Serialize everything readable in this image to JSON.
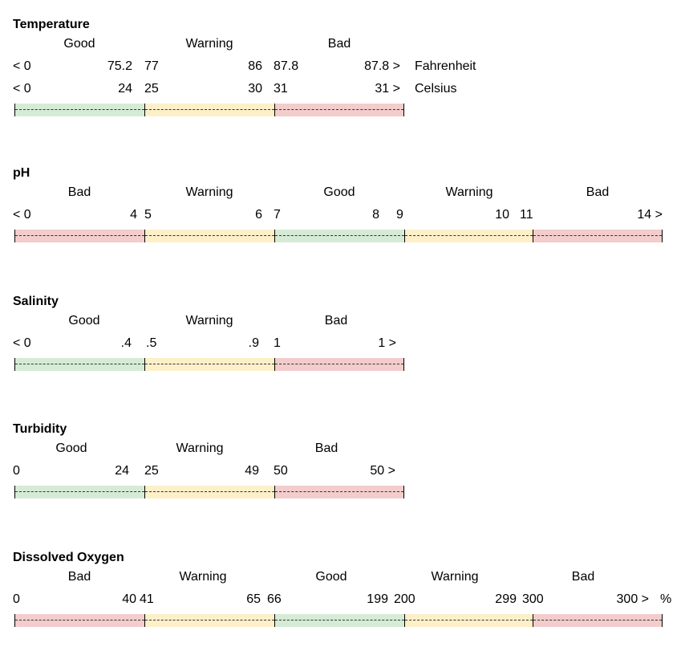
{
  "colors": {
    "good": "#d6ebd5",
    "warning": "#fdf0c8",
    "bad": "#f3cccc"
  },
  "sections": [
    {
      "title": "Temperature",
      "categories": [
        "Good",
        "Warning",
        "Bad"
      ],
      "value_rows": [
        {
          "ranges": [
            [
              "< 0",
              "75.2"
            ],
            [
              "77",
              "86"
            ],
            [
              "87.8",
              "87.8 >"
            ]
          ],
          "suffix": "Fahrenheit"
        },
        {
          "ranges": [
            [
              "< 0",
              "24"
            ],
            [
              "25",
              "30"
            ],
            [
              "31",
              "31 >"
            ]
          ],
          "suffix": "Celsius"
        }
      ]
    },
    {
      "title": "pH",
      "categories": [
        "Bad",
        "Warning",
        "Good",
        "Warning",
        "Bad"
      ],
      "value_rows": [
        {
          "ranges": [
            [
              "< 0",
              "4"
            ],
            [
              "5",
              "6"
            ],
            [
              "7",
              "8"
            ],
            [
              "9",
              "10"
            ],
            [
              "11",
              "14 >"
            ]
          ],
          "suffix": ""
        }
      ]
    },
    {
      "title": "Salinity",
      "categories": [
        "Good",
        "Warning",
        "Bad"
      ],
      "value_rows": [
        {
          "ranges": [
            [
              "< 0",
              ".4"
            ],
            [
              ".5",
              ".9"
            ],
            [
              "1",
              "1 >"
            ]
          ],
          "suffix": ""
        }
      ]
    },
    {
      "title": "Turbidity",
      "categories": [
        "Good",
        "Warning",
        "Bad"
      ],
      "value_rows": [
        {
          "ranges": [
            [
              "0",
              "24"
            ],
            [
              "25",
              "49"
            ],
            [
              "50",
              "50 >"
            ]
          ],
          "suffix": ""
        }
      ]
    },
    {
      "title": "Dissolved Oxygen",
      "categories": [
        "Bad",
        "Warning",
        "Good",
        "Warning",
        "Bad"
      ],
      "value_rows": [
        {
          "ranges": [
            [
              "0",
              "40"
            ],
            [
              "41",
              "65"
            ],
            [
              "66",
              "199"
            ],
            [
              "200",
              "299"
            ],
            [
              "300",
              "300 >"
            ]
          ],
          "suffix": "%"
        }
      ]
    }
  ]
}
